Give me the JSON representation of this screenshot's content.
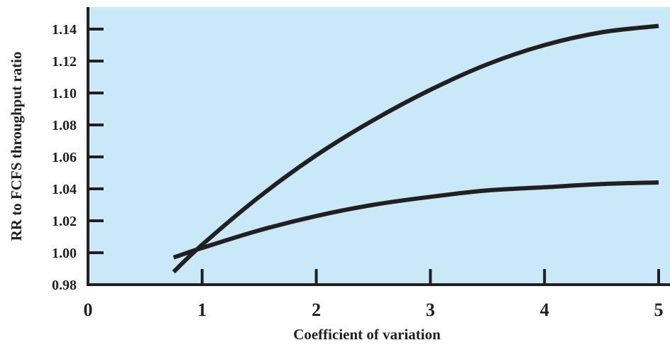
{
  "chart_data": {
    "type": "line",
    "title": "",
    "xlabel": "Coefficient of variation",
    "ylabel": "RR to FCFS throughput ratio",
    "xlim": [
      0,
      5
    ],
    "ylim": [
      0.98,
      1.15
    ],
    "x_ticks": [
      "0",
      "1",
      "2",
      "3",
      "4",
      "5"
    ],
    "y_ticks": [
      "0.98",
      "1.00",
      "1.02",
      "1.04",
      "1.06",
      "1.08",
      "1.10",
      "1.12",
      "1.14"
    ],
    "grid": false,
    "legend": "none",
    "series": [
      {
        "x": [
          0.75,
          1.0,
          1.5,
          2.0,
          2.5,
          3.0,
          3.5,
          4.0,
          4.5,
          5.0
        ],
        "values": [
          0.988,
          1.005,
          1.035,
          1.061,
          1.083,
          1.102,
          1.118,
          1.13,
          1.138,
          1.142
        ]
      },
      {
        "x": [
          0.75,
          1.0,
          1.5,
          2.0,
          2.5,
          3.0,
          3.5,
          4.0,
          4.5,
          5.0
        ],
        "values": [
          0.997,
          1.003,
          1.014,
          1.023,
          1.03,
          1.035,
          1.039,
          1.041,
          1.043,
          1.044
        ]
      }
    ],
    "colors": {
      "plot_background": "#c9e8f8",
      "line": "#231f20",
      "axis": "#231f20"
    }
  }
}
